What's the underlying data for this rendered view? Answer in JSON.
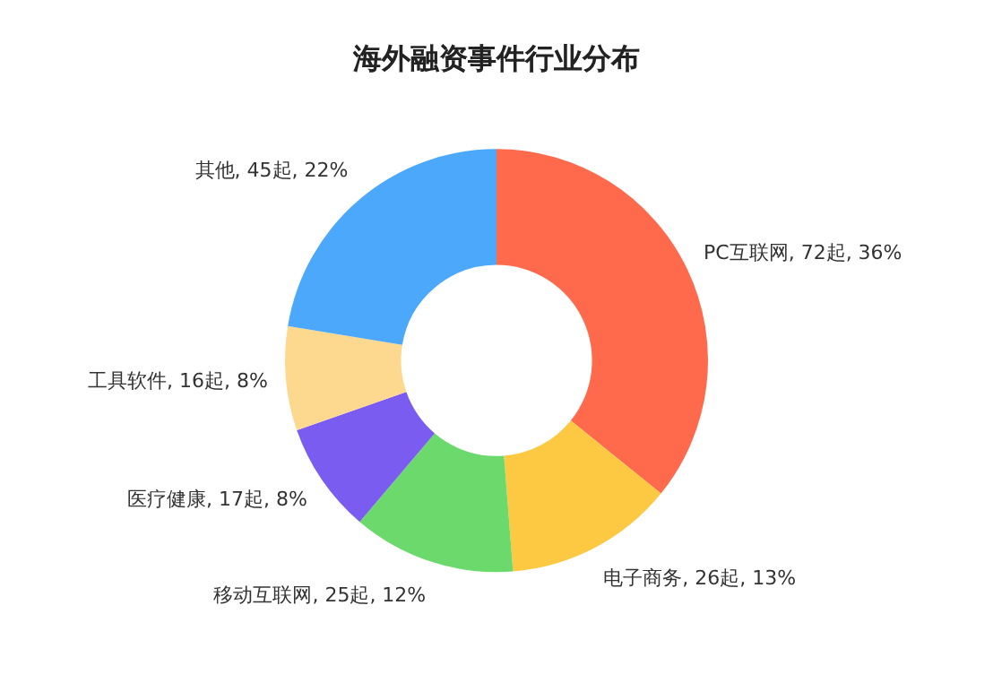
{
  "chart_data": {
    "type": "donut",
    "title": "海外融资事件行业分布",
    "categories": [
      "PC互联网",
      "电子商务",
      "移动互联网",
      "医疗健康",
      "工具软件",
      "其他"
    ],
    "values": [
      72,
      26,
      25,
      17,
      16,
      45
    ],
    "value_labels": [
      "72起, 36%",
      "26起, 13%",
      "25起, 12%",
      "17起, 8%",
      "16起, 8%",
      "45起, 22%"
    ],
    "colors": [
      "#fe6a4b",
      "#fdc943",
      "#6bd96b",
      "#7b5cf0",
      "#fdd98f",
      "#4ba8fb"
    ],
    "legend": false
  }
}
